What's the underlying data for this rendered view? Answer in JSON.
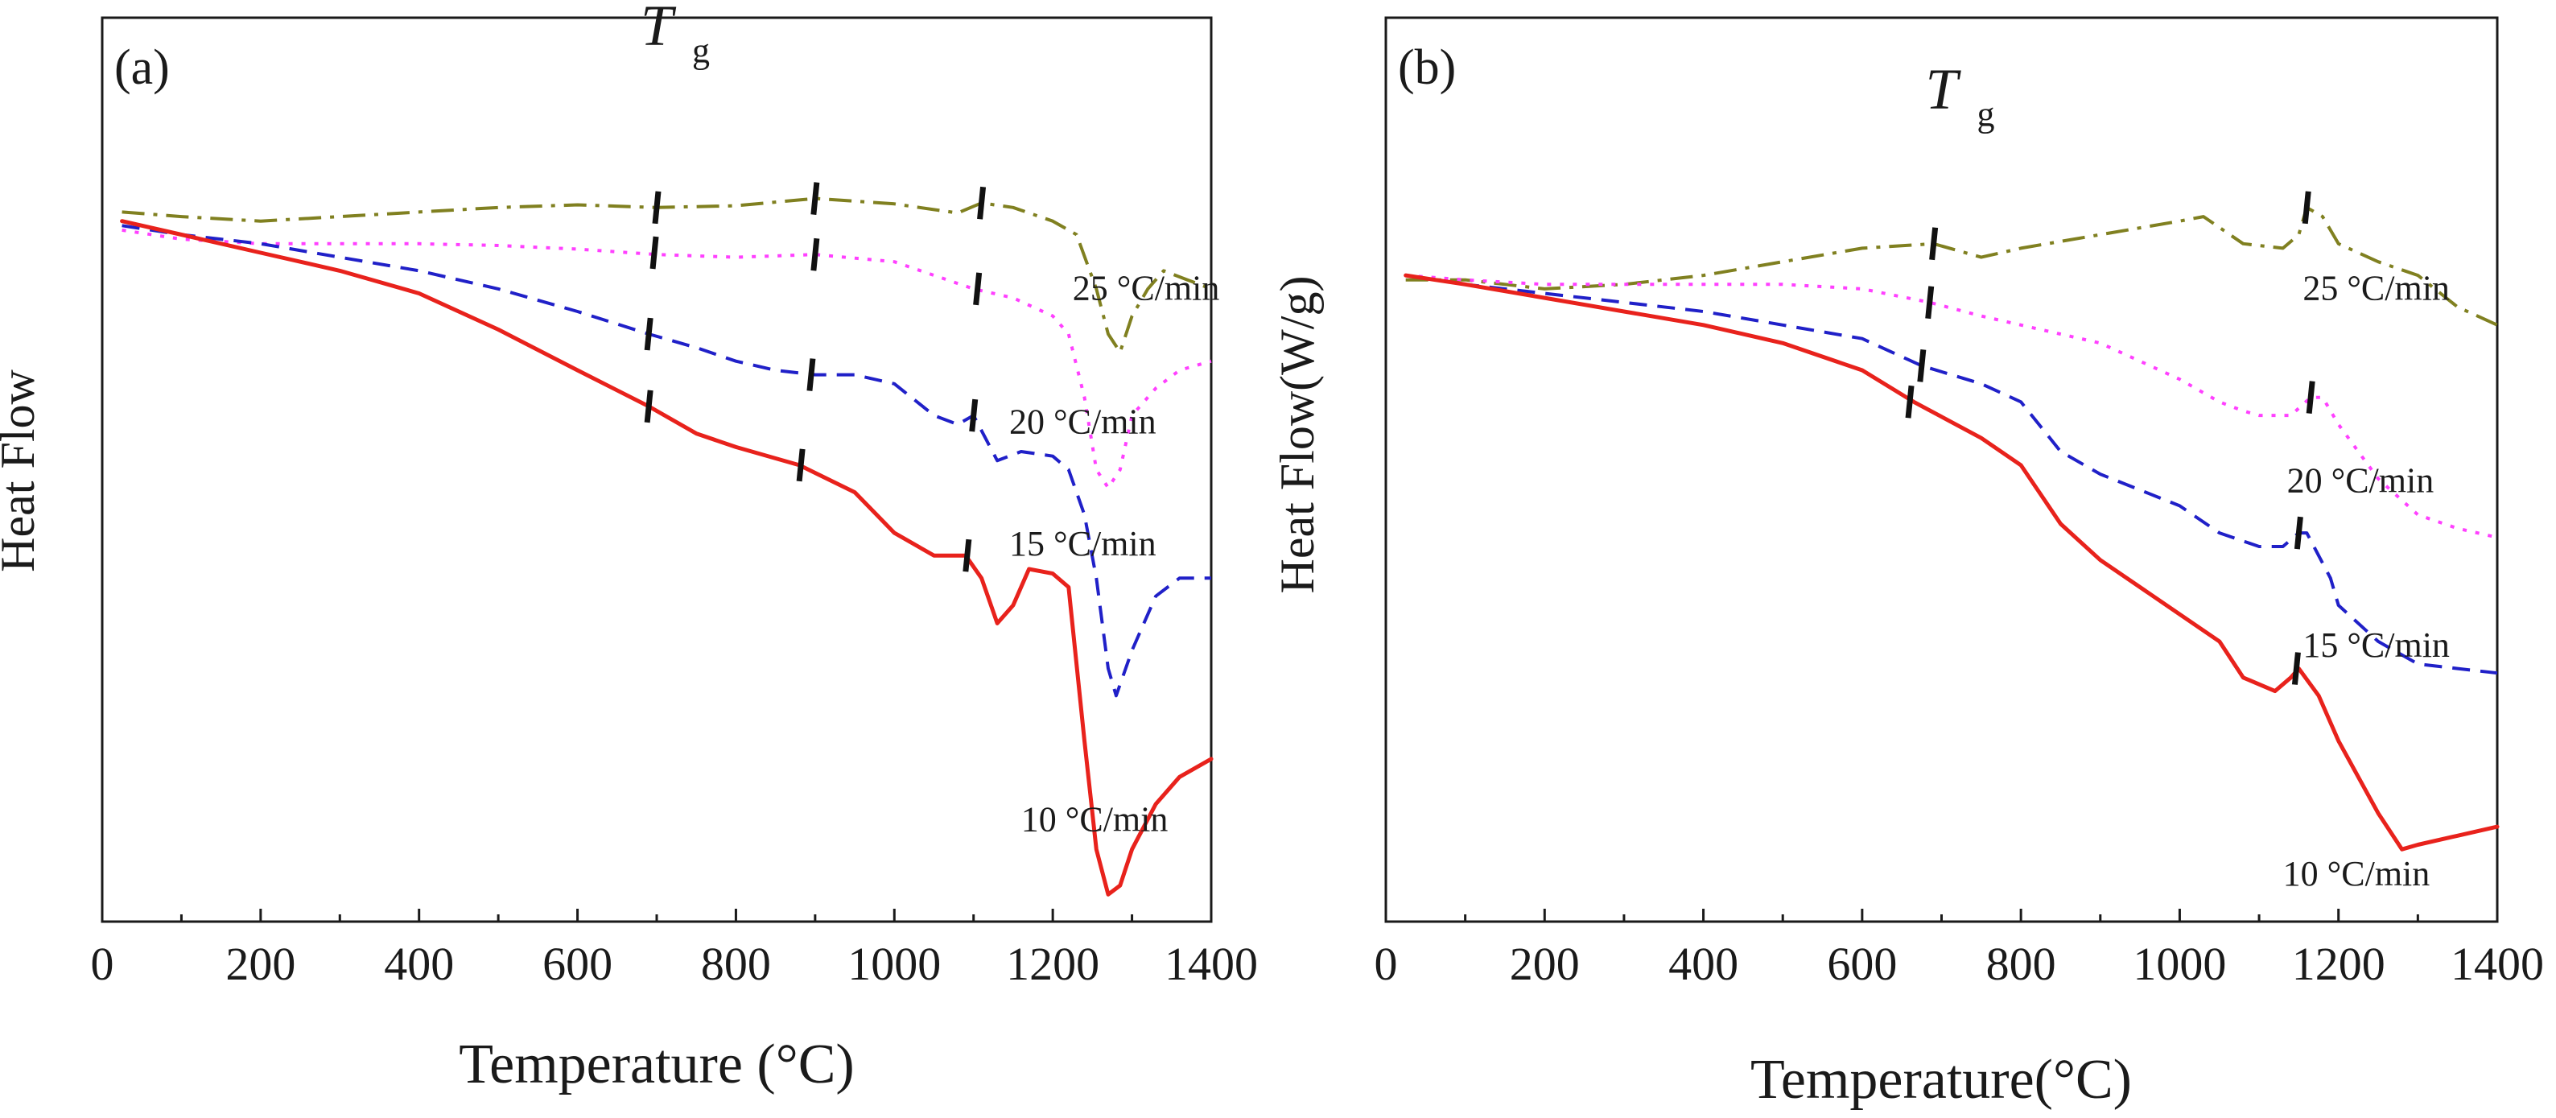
{
  "chart_data": [
    {
      "type": "line",
      "panel_label": "(a)",
      "xlabel": "Temperature (°C)",
      "ylabel": "Heat Flow",
      "xlim": [
        0,
        1400
      ],
      "ylim": [
        0,
        100
      ],
      "x_ticks": [
        "0",
        "200",
        "400",
        "600",
        "800",
        "1000",
        "1200",
        "1400"
      ],
      "tg_label": {
        "main": "T",
        "sub": "g",
        "x": 700,
        "y": 97
      },
      "series": [
        {
          "name": "25 °C/min",
          "color": "#808020",
          "dash": "dashdot",
          "x": [
            25,
            100,
            200,
            300,
            400,
            500,
            600,
            700,
            800,
            900,
            1000,
            1080,
            1110,
            1150,
            1200,
            1230,
            1255,
            1270,
            1285,
            1300,
            1320,
            1340,
            1370,
            1400
          ],
          "y": [
            78.5,
            78,
            77.5,
            78,
            78.5,
            79,
            79.3,
            79,
            79.2,
            80,
            79.4,
            78.4,
            79.5,
            79,
            77.5,
            76,
            70,
            65,
            63,
            67,
            70,
            72,
            71,
            70
          ],
          "ticks": [
            [
              700,
              79
            ],
            [
              900,
              80
            ],
            [
              1110,
              79.5
            ]
          ],
          "label": {
            "text": "25 °C/min",
            "x": 1225,
            "y": 68.8
          }
        },
        {
          "name": "20 °C/min",
          "color": "#ff40ff",
          "dash": "dot",
          "x": [
            25,
            100,
            200,
            300,
            400,
            500,
            600,
            700,
            800,
            900,
            1000,
            1100,
            1150,
            1200,
            1220,
            1240,
            1255,
            1270,
            1285,
            1300,
            1330,
            1360,
            1400
          ],
          "y": [
            76.5,
            75.5,
            75,
            75,
            75,
            74.8,
            74.4,
            73.8,
            73.5,
            73.8,
            73,
            70,
            69,
            67,
            65,
            58,
            50,
            48,
            50,
            56,
            59,
            61,
            62
          ],
          "ticks": [
            [
              697,
              74
            ],
            [
              900,
              73.8
            ],
            [
              1105,
              70
            ]
          ],
          "label": {
            "text": "20 °C/min",
            "x": 1145,
            "y": 54
          }
        },
        {
          "name": "15 °C/min",
          "color": "#2020c8",
          "dash": "dash",
          "x": [
            25,
            100,
            200,
            300,
            400,
            500,
            600,
            690,
            750,
            800,
            850,
            900,
            950,
            1000,
            1050,
            1080,
            1100,
            1130,
            1160,
            1200,
            1220,
            1240,
            1255,
            1270,
            1280,
            1300,
            1330,
            1360,
            1400
          ],
          "y": [
            77,
            76,
            75,
            73.5,
            72,
            70,
            67.5,
            65,
            63.5,
            62,
            61,
            60.5,
            60.5,
            59.5,
            56,
            55,
            56,
            51,
            52,
            51.5,
            50,
            45,
            38,
            28,
            25,
            30,
            36,
            38,
            38
          ],
          "ticks": [
            [
              690,
              65
            ],
            [
              895,
              60.5
            ],
            [
              1100,
              56
            ]
          ],
          "label": {
            "text": "15 °C/min",
            "x": 1145,
            "y": 40.5
          }
        },
        {
          "name": "10 °C/min",
          "color": "#e8221c",
          "dash": "solid",
          "x": [
            25,
            100,
            200,
            300,
            400,
            500,
            600,
            690,
            750,
            800,
            880,
            950,
            1000,
            1050,
            1090,
            1110,
            1130,
            1150,
            1170,
            1200,
            1220,
            1240,
            1255,
            1270,
            1285,
            1300,
            1330,
            1360,
            1400
          ],
          "y": [
            77.5,
            76,
            74,
            72,
            69.5,
            65.5,
            61,
            57,
            54,
            52.5,
            50.5,
            47.5,
            43,
            40.5,
            40.5,
            38,
            33,
            35,
            39,
            38.5,
            37,
            20,
            8,
            3,
            4,
            8,
            13,
            16,
            18
          ],
          "ticks": [
            [
              690,
              57
            ],
            [
              882,
              50.5
            ],
            [
              1092,
              40.5
            ]
          ],
          "label": {
            "text": "10 °C/min",
            "x": 1160,
            "y": 10
          }
        }
      ]
    },
    {
      "type": "line",
      "panel_label": "(b)",
      "xlabel": "Temperature(°C)",
      "ylabel": "Heat Flow(W/g)",
      "xlim": [
        0,
        1400
      ],
      "ylim": [
        0,
        100
      ],
      "x_ticks": [
        "0",
        "200",
        "400",
        "600",
        "800",
        "1000",
        "1200",
        "1400"
      ],
      "tg_label": {
        "main": "T",
        "sub": "g",
        "x": 700,
        "y": 90
      },
      "series": [
        {
          "name": "25 °C/min",
          "color": "#808020",
          "dash": "dashdot",
          "x": [
            25,
            100,
            200,
            300,
            400,
            500,
            600,
            690,
            750,
            800,
            900,
            1000,
            1030,
            1080,
            1130,
            1150,
            1160,
            1180,
            1200,
            1250,
            1300,
            1350,
            1400
          ],
          "y": [
            71,
            71,
            70,
            70.5,
            71.5,
            73,
            74.5,
            75,
            73.5,
            74.5,
            76,
            77.5,
            78,
            75,
            74.5,
            76,
            79,
            78,
            75,
            73,
            71.5,
            68,
            66
          ],
          "ticks": [
            [
              690,
              75
            ],
            [
              1160,
              79
            ]
          ],
          "label": {
            "text": "25 °C/min",
            "x": 1155,
            "y": 68.8
          }
        },
        {
          "name": "20 °C/min",
          "color": "#ff40ff",
          "dash": "dot",
          "x": [
            25,
            100,
            200,
            300,
            400,
            500,
            600,
            685,
            750,
            800,
            900,
            950,
            1000,
            1050,
            1080,
            1100,
            1140,
            1165,
            1180,
            1200,
            1250,
            1300,
            1350,
            1400
          ],
          "y": [
            71.5,
            71,
            70.5,
            70.5,
            70.5,
            70.5,
            70,
            68.5,
            67,
            66,
            64,
            62,
            60,
            57.5,
            56.5,
            56,
            56,
            58,
            58,
            55,
            49,
            45,
            43.5,
            42.5
          ],
          "ticks": [
            [
              685,
              68.5
            ],
            [
              1165,
              58
            ]
          ],
          "label": {
            "text": "20 °C/min",
            "x": 1135,
            "y": 47.5
          }
        },
        {
          "name": "15 °C/min",
          "color": "#2020c8",
          "dash": "dash",
          "x": [
            25,
            100,
            200,
            300,
            400,
            500,
            600,
            675,
            750,
            800,
            850,
            900,
            1000,
            1050,
            1100,
            1130,
            1150,
            1160,
            1190,
            1200,
            1250,
            1300,
            1350,
            1400
          ],
          "y": [
            71.5,
            70.5,
            69.5,
            68.5,
            67.5,
            66,
            64.5,
            61.5,
            59.5,
            57.5,
            52,
            49.5,
            46,
            43,
            41.5,
            41.5,
            43,
            43,
            38,
            35,
            31,
            28.5,
            28,
            27.5
          ],
          "ticks": [
            [
              675,
              61.5
            ],
            [
              1150,
              43
            ]
          ],
          "label": {
            "text": "15 °C/min",
            "x": 1155,
            "y": 29.3
          }
        },
        {
          "name": "10 °C/min",
          "color": "#e8221c",
          "dash": "solid",
          "x": [
            25,
            100,
            200,
            300,
            400,
            500,
            600,
            665,
            750,
            800,
            850,
            900,
            1000,
            1050,
            1080,
            1120,
            1140,
            1150,
            1175,
            1200,
            1250,
            1280,
            1300,
            1350,
            1400
          ],
          "y": [
            71.5,
            70.5,
            69,
            67.5,
            66,
            64,
            61,
            57.5,
            53.5,
            50.5,
            44,
            40,
            34,
            31,
            27,
            25.5,
            27,
            28,
            25,
            20,
            12,
            8,
            8.5,
            9.5,
            10.5
          ],
          "ticks": [
            [
              660,
              57.5
            ],
            [
              1147,
              28
            ]
          ],
          "label": {
            "text": "10 °C/min",
            "x": 1130,
            "y": 4
          }
        }
      ]
    }
  ]
}
